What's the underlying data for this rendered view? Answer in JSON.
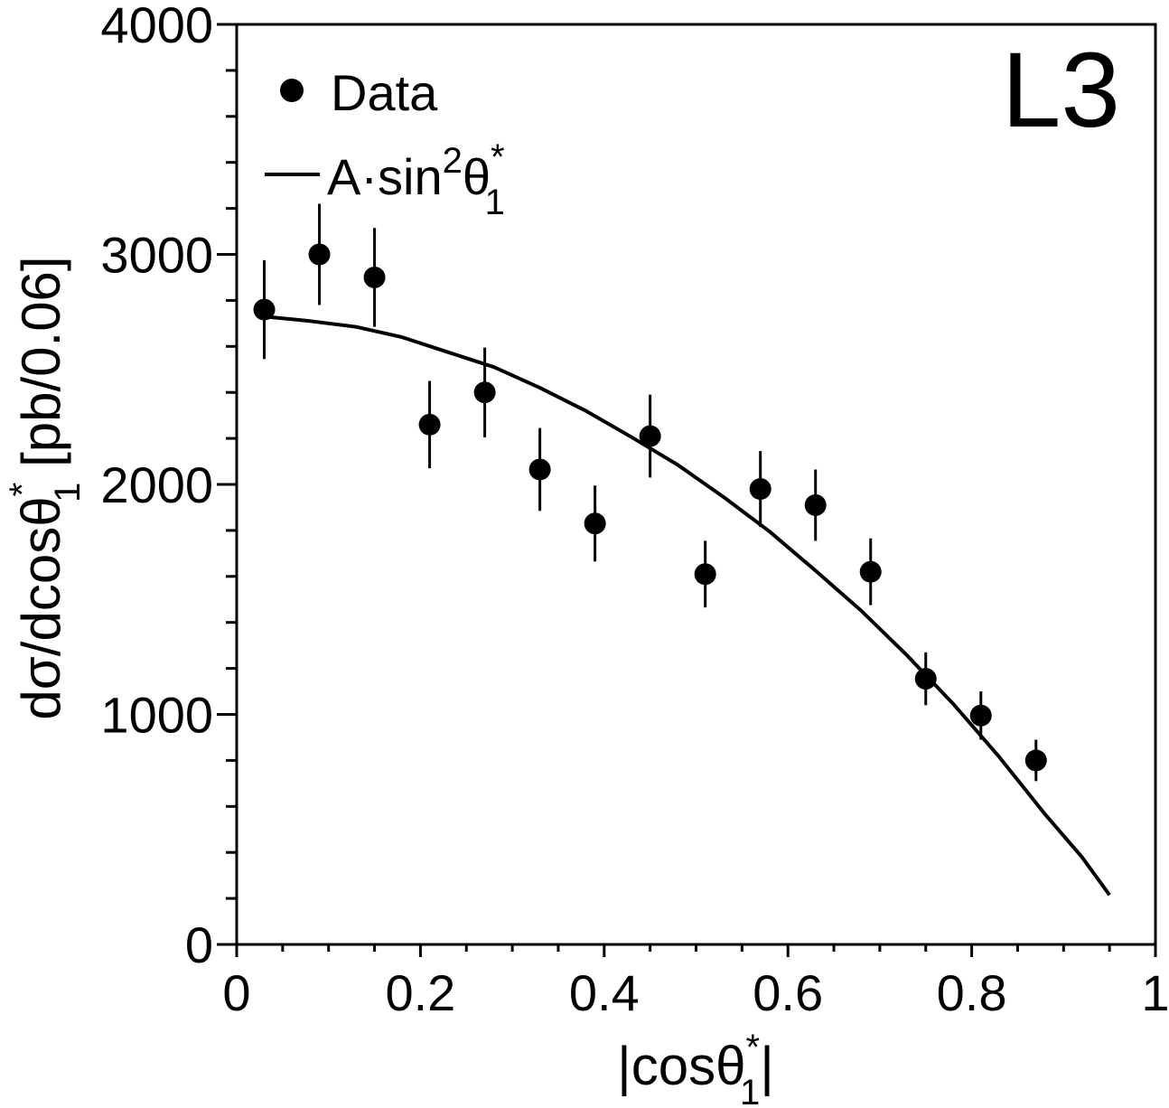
{
  "chart_data": {
    "type": "scatter",
    "experiment_label": "L3",
    "xlabel": {
      "pre": "|cos",
      "theta": "θ",
      "sup": "*",
      "sub": "1",
      "post": "|"
    },
    "ylabel": {
      "pre": "dσ/dcos",
      "theta": "θ",
      "sup": "*",
      "sub": "1",
      "post": " [pb/0.06]"
    },
    "xlim": [
      0,
      1
    ],
    "ylim": [
      0,
      4000
    ],
    "x_ticks": [
      {
        "value": 0,
        "label": "0"
      },
      {
        "value": 0.2,
        "label": "0.2"
      },
      {
        "value": 0.4,
        "label": "0.4"
      },
      {
        "value": 0.6,
        "label": "0.6"
      },
      {
        "value": 0.8,
        "label": "0.8"
      },
      {
        "value": 1,
        "label": "1"
      }
    ],
    "y_ticks": [
      {
        "value": 0,
        "label": "0"
      },
      {
        "value": 1000,
        "label": "1000"
      },
      {
        "value": 2000,
        "label": "2000"
      },
      {
        "value": 3000,
        "label": "3000"
      },
      {
        "value": 4000,
        "label": "4000"
      }
    ],
    "x_minor_step": 0.05,
    "y_minor_step": 200,
    "legend": {
      "placement": "top-left",
      "data_label": "Data",
      "fit_label": {
        "pre": "A·sin",
        "sup2": "2",
        "theta": "θ",
        "sup": "*",
        "sub": "1"
      }
    },
    "series": [
      {
        "name": "Data",
        "kind": "points-with-errors",
        "color": "#000000",
        "points": [
          {
            "x": 0.03,
            "y": 2760,
            "err": 215
          },
          {
            "x": 0.09,
            "y": 3000,
            "err": 220
          },
          {
            "x": 0.15,
            "y": 2900,
            "err": 215
          },
          {
            "x": 0.21,
            "y": 2260,
            "err": 190
          },
          {
            "x": 0.27,
            "y": 2400,
            "err": 195
          },
          {
            "x": 0.33,
            "y": 2065,
            "err": 180
          },
          {
            "x": 0.39,
            "y": 1830,
            "err": 165
          },
          {
            "x": 0.45,
            "y": 2210,
            "err": 180
          },
          {
            "x": 0.51,
            "y": 1610,
            "err": 145
          },
          {
            "x": 0.57,
            "y": 1980,
            "err": 165
          },
          {
            "x": 0.63,
            "y": 1910,
            "err": 155
          },
          {
            "x": 0.69,
            "y": 1620,
            "err": 145
          },
          {
            "x": 0.75,
            "y": 1155,
            "err": 115
          },
          {
            "x": 0.81,
            "y": 995,
            "err": 105
          },
          {
            "x": 0.87,
            "y": 800,
            "err": 90
          }
        ]
      },
      {
        "name": "A·sin²θ*₁",
        "kind": "line",
        "color": "#000000",
        "x": [
          0.03,
          0.08,
          0.13,
          0.18,
          0.23,
          0.28,
          0.33,
          0.38,
          0.43,
          0.48,
          0.53,
          0.58,
          0.63,
          0.68,
          0.73,
          0.78,
          0.83,
          0.88,
          0.92,
          0.95
        ],
        "y": [
          2730,
          2710,
          2685,
          2640,
          2575,
          2510,
          2420,
          2320,
          2205,
          2085,
          1945,
          1795,
          1625,
          1450,
          1255,
          1045,
          815,
          565,
          380,
          215
        ]
      }
    ]
  }
}
